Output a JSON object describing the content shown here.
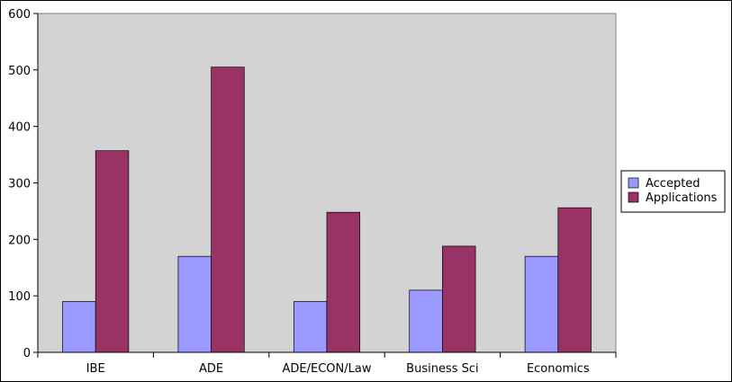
{
  "chart_data": {
    "type": "bar",
    "categories": [
      "IBE",
      "ADE",
      "ADE/ECON/Law",
      "Business Sci",
      "Economics"
    ],
    "series": [
      {
        "name": "Accepted",
        "values": [
          90,
          170,
          90,
          110,
          170
        ],
        "color": "#9999ff"
      },
      {
        "name": "Applications",
        "values": [
          357,
          505,
          248,
          188,
          256
        ],
        "color": "#993366"
      }
    ],
    "ylim": [
      0,
      600
    ],
    "yticks": [
      0,
      100,
      200,
      300,
      400,
      500,
      600
    ],
    "grid": false,
    "plot_background": "#d3d3d3",
    "legend_position": "right"
  }
}
